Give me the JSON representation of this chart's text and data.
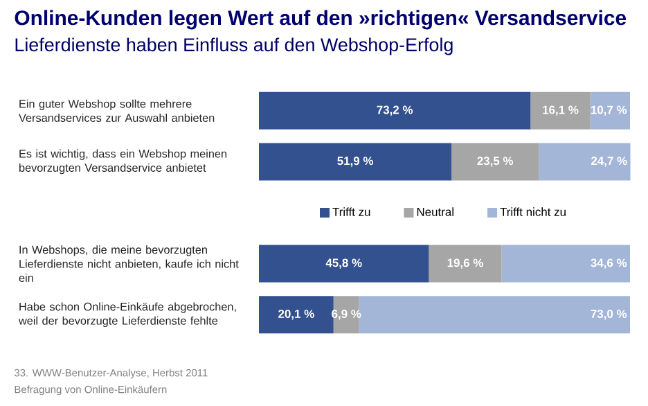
{
  "chart_data": {
    "type": "bar",
    "orientation": "horizontal",
    "stacked": true,
    "title": "Online-Kunden legen Wert auf den »richtigen« Versandservice",
    "subtitle": "Lieferdienste haben Einfluss auf den Webshop-Erfolg",
    "categories": [
      "Ein guter Webshop sollte mehrere Versandservices zur Auswahl anbieten",
      "Es ist wichtig, dass ein Webshop meinen bevorzugten Versandservice anbietet",
      "In Webshops, die meine bevorzugten Lieferdienste nicht anbieten, kaufe ich nicht ein",
      "Habe schon Online-Einkäufe abgebrochen, weil der bevorzugte Lieferdienste fehlte"
    ],
    "series": [
      {
        "name": "Trifft zu",
        "color": "#34518f",
        "values": [
          73.2,
          51.9,
          45.8,
          20.1
        ],
        "value_labels": [
          "73,2 %",
          "51,9 %",
          "45,8 %",
          "20,1 %"
        ]
      },
      {
        "name": "Neutral",
        "color": "#a6a6a6",
        "values": [
          16.1,
          23.5,
          19.6,
          6.9
        ],
        "value_labels": [
          "16,1 %",
          "23,5 %",
          "19,6 %",
          "6,9 %"
        ]
      },
      {
        "name": "Trifft nicht zu",
        "color": "#a3b6d8",
        "values": [
          10.7,
          24.7,
          34.6,
          73.0
        ],
        "value_labels": [
          "10,7 %",
          "24,7 %",
          "34,6 %",
          "73,0 %"
        ]
      }
    ],
    "xlim": [
      0,
      100
    ],
    "tick_labels": "y",
    "legend": "center",
    "annotations": [
      "33. WWW-Benutzer-Analyse, Herbst 2011",
      "Befragung von Online-Einkäufern"
    ]
  }
}
